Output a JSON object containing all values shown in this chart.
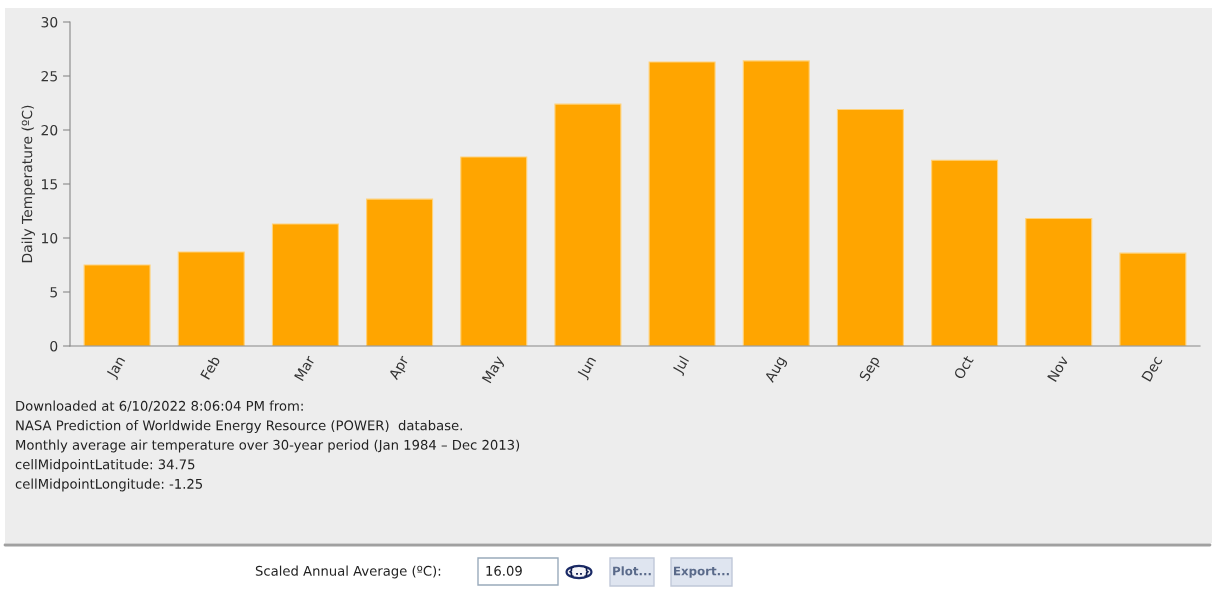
{
  "chart_data": {
    "type": "bar",
    "ylabel": "Daily Temperature (ºC)",
    "categories": [
      "Jan",
      "Feb",
      "Mar",
      "Apr",
      "May",
      "Jun",
      "Jul",
      "Aug",
      "Sep",
      "Oct",
      "Nov",
      "Dec"
    ],
    "values": [
      7.5,
      8.7,
      11.3,
      13.6,
      17.5,
      22.4,
      26.3,
      26.4,
      21.9,
      17.2,
      11.8,
      8.6
    ],
    "color": "#ffa500",
    "ylim": [
      0,
      30
    ],
    "yticks": [
      0,
      5,
      10,
      15,
      20,
      25,
      30
    ],
    "grid": false,
    "annotations": [
      "Downloaded at 6/10/2022 8:06:04 PM from:",
      "NASA Prediction of Worldwide Energy Resource (POWER)  database.",
      "Monthly average air temperature over 30-year period (Jan 1984 – Dec 2013)",
      "cellMidpointLatitude: 34.75",
      "cellMidpointLongitude: -1.25",
      "Scaled Annual Average (ºC):",
      "16.09",
      "{..}",
      "Plot...",
      "Export..."
    ]
  }
}
